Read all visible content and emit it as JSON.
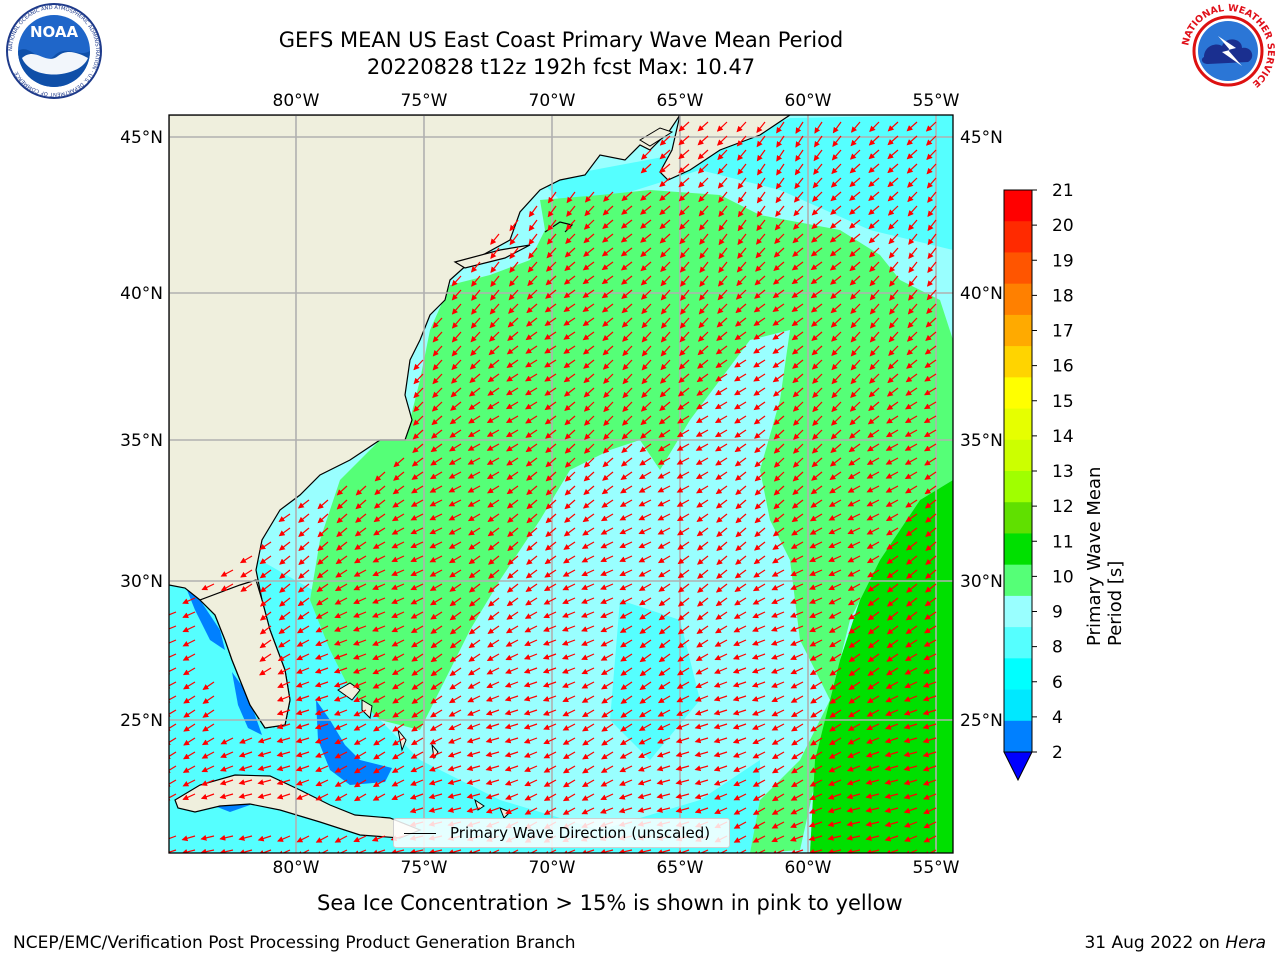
{
  "title": {
    "line1": "GEFS MEAN US East Coast Primary Wave Mean Period",
    "line2": "20220828 t12z 192h fcst   Max: 10.47"
  },
  "logos": {
    "left": {
      "name": "noaa-logo",
      "text": "NOAA",
      "ring_text": "NATIONAL OCEANIC AND ATMOSPHERIC ADMINISTRATION · U.S. DEPARTMENT OF COMMERCE"
    },
    "right": {
      "name": "nws-logo",
      "ring_text": "NATIONAL WEATHER SERVICE"
    }
  },
  "map": {
    "lon_ticks": [
      "80°W",
      "75°W",
      "70°W",
      "65°W",
      "60°W",
      "55°W"
    ],
    "lat_ticks": [
      "45°N",
      "40°N",
      "35°N",
      "30°N",
      "25°N"
    ],
    "colors": {
      "land": "#efefdd",
      "grid": "#b0b0b0",
      "arrow": "#ff0000",
      "coast": "#000000"
    },
    "legend_label": "Primary Wave Direction (unscaled)"
  },
  "colorbar": {
    "label": "Primary Wave Mean Period [s]",
    "ticks": [
      "21",
      "20",
      "19",
      "18",
      "17",
      "16",
      "15",
      "14",
      "13",
      "12",
      "11",
      "10",
      "9",
      "8",
      "6",
      "4",
      "2"
    ],
    "colors_top_to_bottom": [
      "#ff0000",
      "#ff2a00",
      "#ff5500",
      "#ff8000",
      "#ffaa00",
      "#ffd400",
      "#ffff00",
      "#e6ff00",
      "#ccff00",
      "#a0ff00",
      "#60e000",
      "#00e000",
      "#55ff77",
      "#99ffff",
      "#55ffff",
      "#00ffff",
      "#00e8ff",
      "#0080ff"
    ],
    "extend_color": "#0000ff"
  },
  "caption": "Sea Ice Concentration > 15% is shown in pink to yellow",
  "footer": {
    "left": "NCEP/EMC/Verification Post Processing Product Generation Branch",
    "right_date": "31 Aug 2022 on ",
    "right_host": "Hera"
  }
}
